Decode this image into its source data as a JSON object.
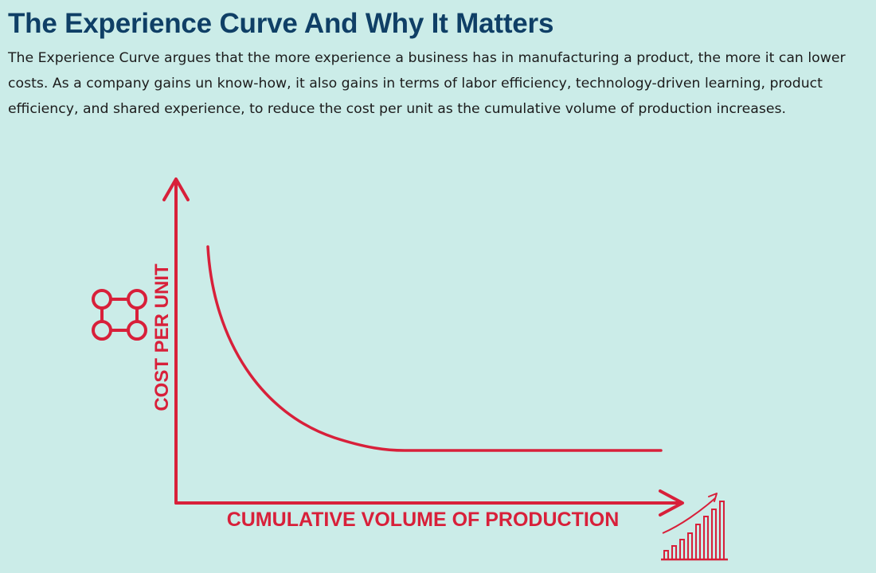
{
  "title": "The Experience Curve And Why It Matters",
  "intro": "The Experience Curve argues that the more experience a business has in manufacturing a product, the more it can lower costs. As a company gains un know-how, it also gains in terms of labor efficiency, technology-driven learning, product efficiency, and shared experience, to reduce the cost per unit as the cumulative volume of production increases.",
  "diagram": {
    "y_axis_label": "COST PER UNIT",
    "x_axis_label": "CUMULATIVE VOLUME OF PRODUCTION",
    "accent_color": "#d8203a",
    "icons": {
      "left": "connected-nodes-icon",
      "right": "rising-bar-chart-icon"
    }
  },
  "colors": {
    "background": "#cbece8",
    "title": "#0f3f66",
    "text": "#1c1c1c"
  }
}
